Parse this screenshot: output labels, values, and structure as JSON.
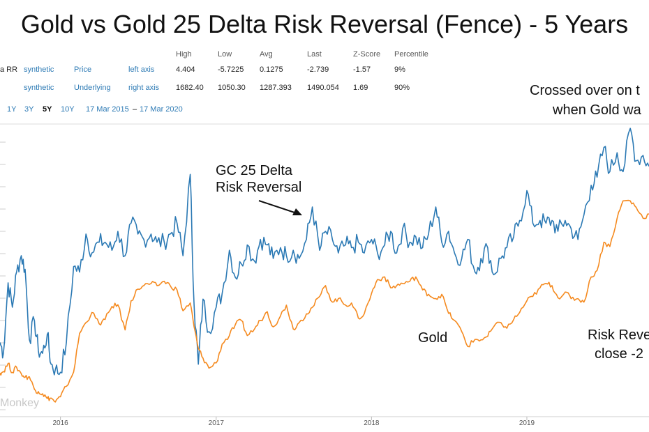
{
  "title": "Gold vs Gold 25 Delta Risk Reversal (Fence) - 5 Years",
  "stats": {
    "headers": [
      "High",
      "Low",
      "Avg",
      "Last",
      "Z-Score",
      "Percentile"
    ],
    "rows": [
      {
        "name": "a RR",
        "type": "synthetic",
        "field": "Price",
        "axis": "left axis",
        "values": [
          "4.404",
          "-5.7225",
          "0.1275",
          "-2.739",
          "-1.57",
          "9%"
        ]
      },
      {
        "name": "",
        "type": "synthetic",
        "field": "Underlying",
        "axis": "right axis",
        "values": [
          "1682.40",
          "1050.30",
          "1287.393",
          "1490.054",
          "1.69",
          "90%"
        ]
      }
    ]
  },
  "ranges": {
    "buttons": [
      "1Y",
      "3Y",
      "5Y",
      "10Y"
    ],
    "selected": "5Y",
    "start": "17 Mar 2015",
    "sep": "–",
    "end": "17 Mar 2020"
  },
  "annotations": {
    "rr_label_1": "GC 25 Delta",
    "rr_label_2": "Risk Reversal",
    "gold_label": "Gold",
    "crossed_1": "Crossed over on t",
    "crossed_2": "when Gold wa",
    "rr_close_1": "Risk Reve",
    "rr_close_2": "close -2"
  },
  "watermark": "Monkey",
  "colors": {
    "risk_reversal": "#2b79b4",
    "gold": "#f58a1f",
    "grid": "#e4e4e4"
  },
  "chart_data": {
    "type": "line",
    "xlabel": "",
    "ylabel": "",
    "x_ticks": [
      "2016",
      "2017",
      "2018",
      "2019"
    ],
    "x_tick_dates": [
      "2016-01-01",
      "2017-01-01",
      "2018-01-01",
      "2019-01-01"
    ],
    "x_range": [
      "2015-08-12",
      "2019-10-15"
    ],
    "left_axis_range": [
      -5.7225,
      4.404
    ],
    "right_axis_range": [
      1050.3,
      1682.4
    ],
    "grid": true,
    "series": [
      {
        "name": "GC 25 Delta Risk Reversal",
        "axis": "left",
        "color": "#2b79b4",
        "x": [
          "2015-08-12",
          "2015-08-20",
          "2015-08-31",
          "2015-09-10",
          "2015-09-20",
          "2015-10-01",
          "2015-10-10",
          "2015-10-20",
          "2015-11-01",
          "2015-11-10",
          "2015-11-20",
          "2015-12-01",
          "2015-12-10",
          "2015-12-20",
          "2016-01-01",
          "2016-01-15",
          "2016-02-01",
          "2016-02-15",
          "2016-03-01",
          "2016-03-15",
          "2016-04-01",
          "2016-04-15",
          "2016-05-01",
          "2016-05-15",
          "2016-06-01",
          "2016-06-15",
          "2016-07-01",
          "2016-07-15",
          "2016-08-01",
          "2016-08-15",
          "2016-09-01",
          "2016-09-15",
          "2016-10-01",
          "2016-10-15",
          "2016-11-01",
          "2016-11-10",
          "2016-11-20",
          "2016-12-01",
          "2016-12-15",
          "2017-01-01",
          "2017-01-15",
          "2017-02-01",
          "2017-02-15",
          "2017-03-01",
          "2017-03-15",
          "2017-04-01",
          "2017-04-15",
          "2017-05-01",
          "2017-05-15",
          "2017-06-01",
          "2017-06-15",
          "2017-07-01",
          "2017-07-15",
          "2017-08-01",
          "2017-08-15",
          "2017-09-01",
          "2017-09-15",
          "2017-10-01",
          "2017-10-15",
          "2017-11-01",
          "2017-11-15",
          "2017-12-01",
          "2017-12-15",
          "2018-01-01",
          "2018-01-15",
          "2018-02-01",
          "2018-02-15",
          "2018-03-01",
          "2018-03-15",
          "2018-04-01",
          "2018-04-15",
          "2018-05-01",
          "2018-05-15",
          "2018-06-01",
          "2018-06-15",
          "2018-07-01",
          "2018-07-15",
          "2018-08-01",
          "2018-08-15",
          "2018-09-01",
          "2018-09-15",
          "2018-10-01",
          "2018-10-15",
          "2018-11-01",
          "2018-11-15",
          "2018-12-01",
          "2018-12-15",
          "2019-01-01",
          "2019-01-15",
          "2019-02-01",
          "2019-02-15",
          "2019-03-01",
          "2019-03-15",
          "2019-04-01",
          "2019-04-15",
          "2019-05-01",
          "2019-05-15",
          "2019-06-01",
          "2019-06-15",
          "2019-07-01",
          "2019-07-15",
          "2019-08-01",
          "2019-08-15",
          "2019-09-01",
          "2019-09-15",
          "2019-10-01",
          "2019-10-15"
        ],
        "y": [
          -3.5,
          -3.9,
          -1.3,
          -2.2,
          -0.9,
          -0.3,
          -0.8,
          -3.4,
          -2.7,
          -3.8,
          -3.9,
          -3.2,
          -4.3,
          -4.5,
          -4.6,
          -3.5,
          -0.7,
          -0.9,
          0.5,
          -0.2,
          0.2,
          0.2,
          -0.1,
          0.6,
          -0.3,
          0.9,
          0.5,
          0.3,
          0.5,
          0.2,
          0.2,
          0.5,
          0.9,
          -0.3,
          2.7,
          -2.1,
          -4.3,
          -1.9,
          -3.1,
          -2.2,
          -1.7,
          -0.1,
          -1.1,
          -0.6,
          0.1,
          -0.5,
          0.3,
          0.1,
          -0.4,
          0.0,
          -0.3,
          -0.1,
          -0.4,
          0.3,
          1.5,
          -0.1,
          0.6,
          0.3,
          -0.2,
          0.1,
          0.0,
          0.2,
          -0.2,
          0.3,
          -0.2,
          0.1,
          0.6,
          -0.2,
          0.7,
          0.2,
          0.4,
          0.0,
          0.5,
          1.5,
          0.2,
          0.6,
          -0.2,
          -0.4,
          0.3,
          -0.9,
          -0.4,
          0.0,
          -1.0,
          -0.4,
          0.0,
          0.4,
          1.0,
          2.1,
          0.9,
          1.0,
          0.9,
          1.0,
          0.6,
          1.0,
          0.7,
          0.3,
          1.2,
          2.3,
          2.6,
          3.7,
          2.8,
          3.5,
          2.8,
          4.4,
          3.2,
          3.4,
          3.0
        ]
      },
      {
        "name": "Gold",
        "axis": "right",
        "color": "#f58a1f",
        "x": [
          "2015-08-12",
          "2015-08-20",
          "2015-08-31",
          "2015-09-10",
          "2015-09-20",
          "2015-10-01",
          "2015-10-10",
          "2015-10-20",
          "2015-11-01",
          "2015-11-10",
          "2015-11-20",
          "2015-12-01",
          "2015-12-10",
          "2015-12-20",
          "2016-01-01",
          "2016-01-15",
          "2016-02-01",
          "2016-02-15",
          "2016-03-01",
          "2016-03-15",
          "2016-04-01",
          "2016-04-15",
          "2016-05-01",
          "2016-05-15",
          "2016-06-01",
          "2016-06-15",
          "2016-07-01",
          "2016-07-15",
          "2016-08-01",
          "2016-08-15",
          "2016-09-01",
          "2016-09-15",
          "2016-10-01",
          "2016-10-15",
          "2016-11-01",
          "2016-11-10",
          "2016-11-20",
          "2016-12-01",
          "2016-12-15",
          "2017-01-01",
          "2017-01-15",
          "2017-02-01",
          "2017-02-15",
          "2017-03-01",
          "2017-03-15",
          "2017-04-01",
          "2017-04-15",
          "2017-05-01",
          "2017-05-15",
          "2017-06-01",
          "2017-06-15",
          "2017-07-01",
          "2017-07-15",
          "2017-08-01",
          "2017-08-15",
          "2017-09-01",
          "2017-09-15",
          "2017-10-01",
          "2017-10-15",
          "2017-11-01",
          "2017-11-15",
          "2017-12-01",
          "2017-12-15",
          "2018-01-01",
          "2018-01-15",
          "2018-02-01",
          "2018-02-15",
          "2018-03-01",
          "2018-03-15",
          "2018-04-01",
          "2018-04-15",
          "2018-05-01",
          "2018-05-15",
          "2018-06-01",
          "2018-06-15",
          "2018-07-01",
          "2018-07-15",
          "2018-08-01",
          "2018-08-15",
          "2018-09-01",
          "2018-09-15",
          "2018-10-01",
          "2018-10-15",
          "2018-11-01",
          "2018-11-15",
          "2018-12-01",
          "2018-12-15",
          "2019-01-01",
          "2019-01-15",
          "2019-02-01",
          "2019-02-15",
          "2019-03-01",
          "2019-03-15",
          "2019-04-01",
          "2019-04-15",
          "2019-05-01",
          "2019-05-15",
          "2019-06-01",
          "2019-06-15",
          "2019-07-01",
          "2019-07-15",
          "2019-08-01",
          "2019-08-15",
          "2019-09-01",
          "2019-09-15",
          "2019-10-01",
          "2019-10-15"
        ],
        "y": [
          1119,
          1122,
          1141,
          1120,
          1132,
          1117,
          1109,
          1110,
          1081,
          1076,
          1071,
          1060,
          1061,
          1052,
          1064,
          1088,
          1121,
          1210,
          1235,
          1258,
          1232,
          1242,
          1272,
          1276,
          1218,
          1285,
          1312,
          1320,
          1325,
          1320,
          1330,
          1320,
          1310,
          1262,
          1280,
          1225,
          1175,
          1153,
          1130,
          1142,
          1185,
          1205,
          1230,
          1240,
          1205,
          1220,
          1240,
          1260,
          1225,
          1250,
          1275,
          1220,
          1235,
          1255,
          1270,
          1295,
          1320,
          1282,
          1290,
          1275,
          1280,
          1245,
          1255,
          1302,
          1334,
          1340,
          1315,
          1320,
          1325,
          1330,
          1340,
          1310,
          1300,
          1290,
          1300,
          1256,
          1240,
          1214,
          1180,
          1196,
          1195,
          1203,
          1225,
          1235,
          1222,
          1242,
          1258,
          1285,
          1295,
          1315,
          1325,
          1320,
          1292,
          1305,
          1290,
          1290,
          1282,
          1340,
          1355,
          1420,
          1410,
          1475,
          1515,
          1515,
          1500,
          1475,
          1485
        ]
      }
    ]
  }
}
